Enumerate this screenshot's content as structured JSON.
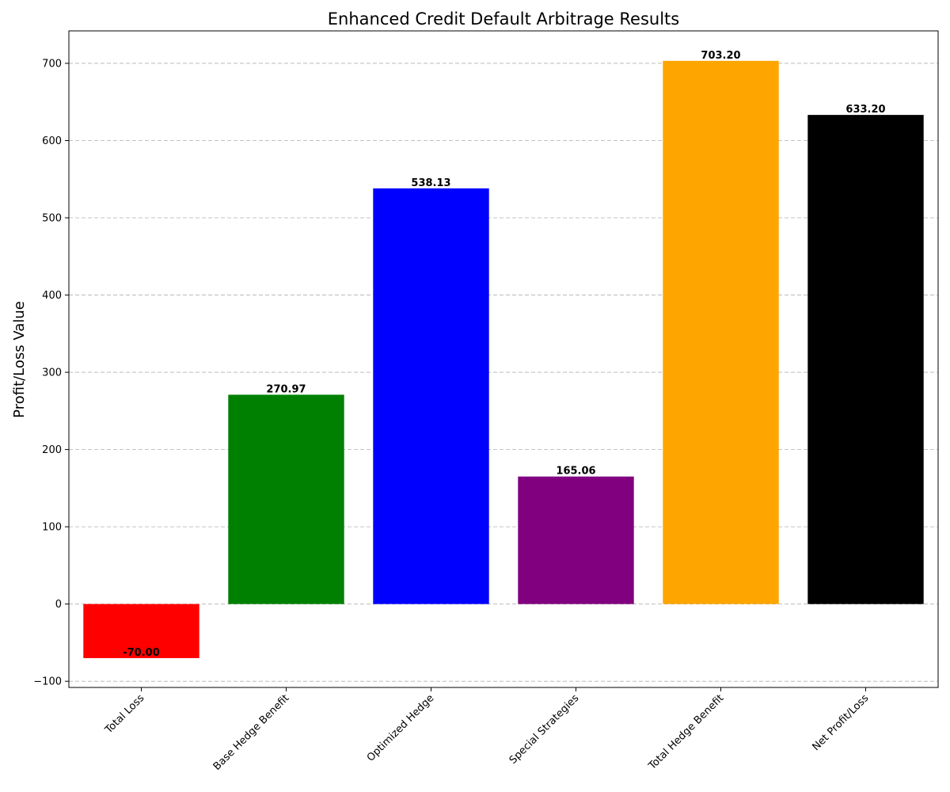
{
  "chart_data": {
    "type": "bar",
    "title": "Enhanced Credit Default Arbitrage Results",
    "xlabel": "",
    "ylabel": "Profit/Loss Value",
    "categories": [
      "Total Loss",
      "Base Hedge Benefit",
      "Optimized Hedge",
      "Special Strategies",
      "Total Hedge Benefit",
      "Net Profit/Loss"
    ],
    "values": [
      -70.0,
      270.97,
      538.13,
      165.06,
      703.2,
      633.2
    ],
    "value_labels": [
      "-70.00",
      "270.97",
      "538.13",
      "165.06",
      "703.20",
      "633.20"
    ],
    "colors": [
      "#ff0000",
      "#008000",
      "#0000ff",
      "#800080",
      "#ffa500",
      "#000000"
    ],
    "ylim": [
      -108,
      742
    ],
    "yticks": [
      -100,
      0,
      100,
      200,
      300,
      400,
      500,
      600,
      700
    ],
    "ytick_labels": [
      "−100",
      "0",
      "100",
      "200",
      "300",
      "400",
      "500",
      "600",
      "700"
    ],
    "grid": "y-axis dashed",
    "legend": "none"
  }
}
